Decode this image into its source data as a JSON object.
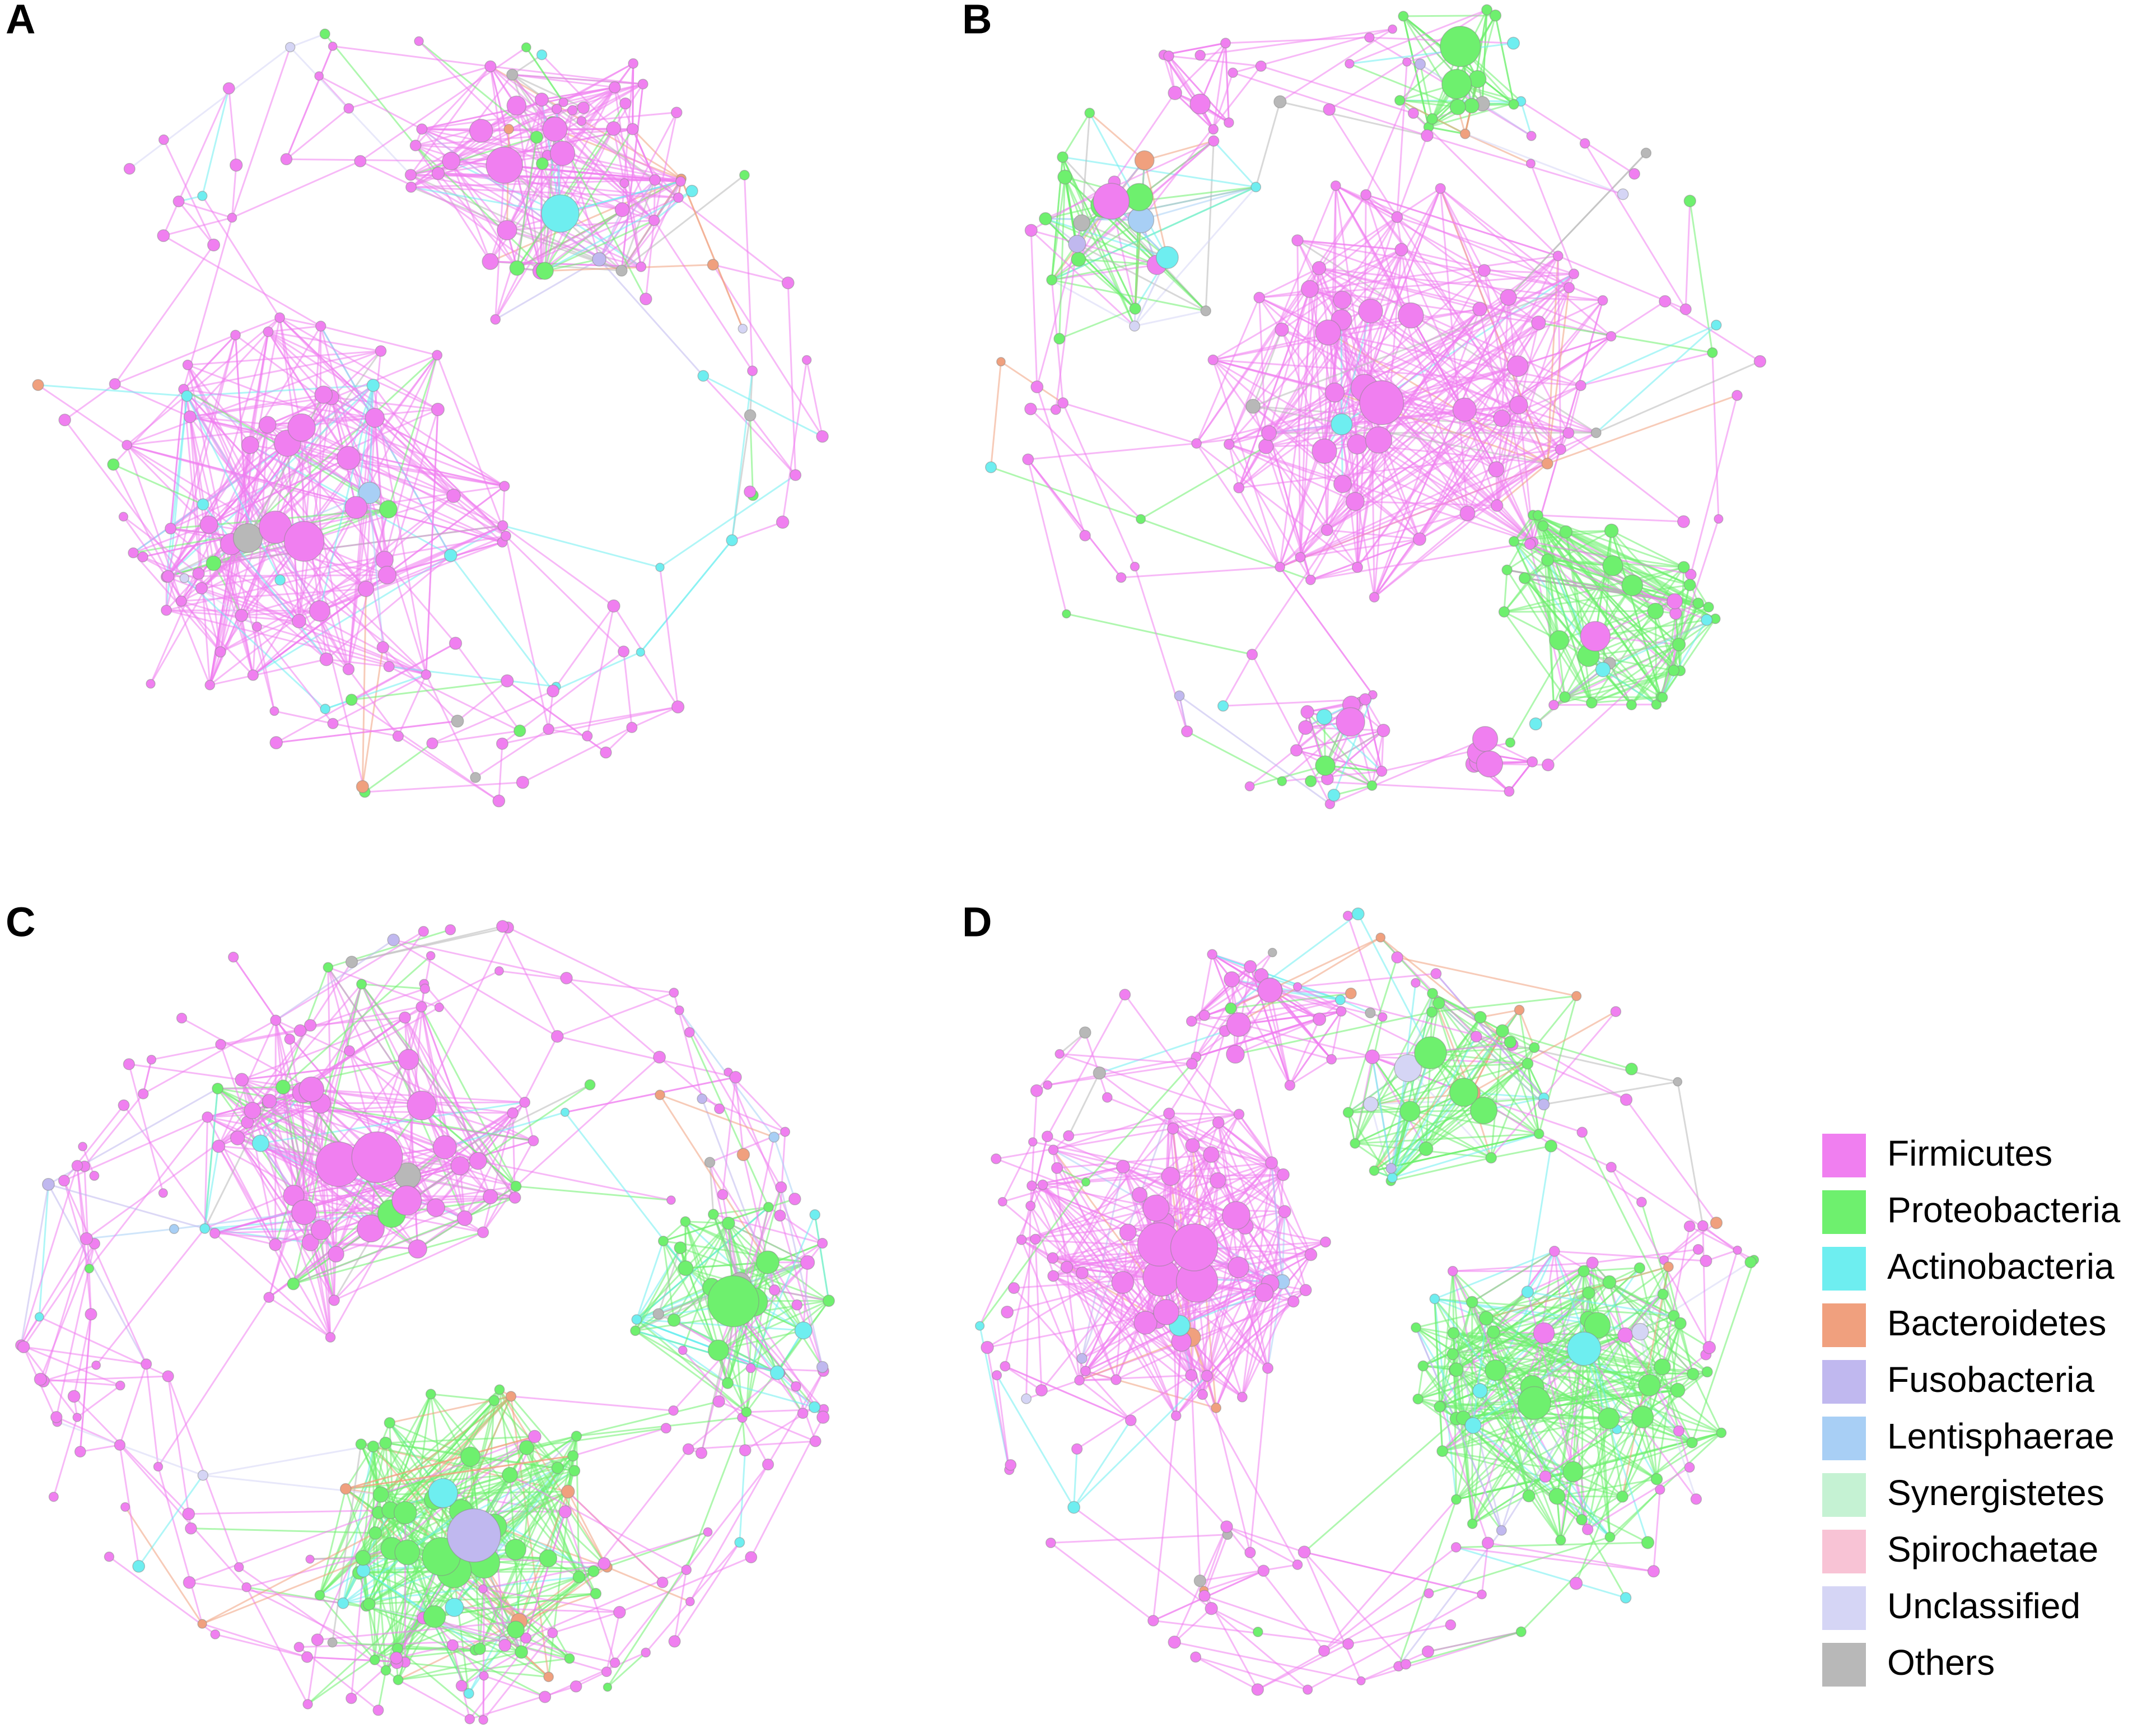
{
  "panels": [
    {
      "label": "A"
    },
    {
      "label": "B"
    },
    {
      "label": "C"
    },
    {
      "label": "D"
    }
  ],
  "legend": [
    {
      "label": "Firmicutes",
      "color": "#f07ff0"
    },
    {
      "label": "Proteobacteria",
      "color": "#6ef06e"
    },
    {
      "label": "Actinobacteria",
      "color": "#6eeef0"
    },
    {
      "label": "Bacteroidetes",
      "color": "#f0a07e"
    },
    {
      "label": "Fusobacteria",
      "color": "#c0b8ef"
    },
    {
      "label": "Lentisphaerae",
      "color": "#a8cff5"
    },
    {
      "label": "Synergistetes",
      "color": "#c5f2d3"
    },
    {
      "label": "Spirochaetae",
      "color": "#f8c3d5"
    },
    {
      "label": "Unclassified",
      "color": "#d5d5f5"
    },
    {
      "label": "Others",
      "color": "#b8b8b8"
    }
  ]
}
